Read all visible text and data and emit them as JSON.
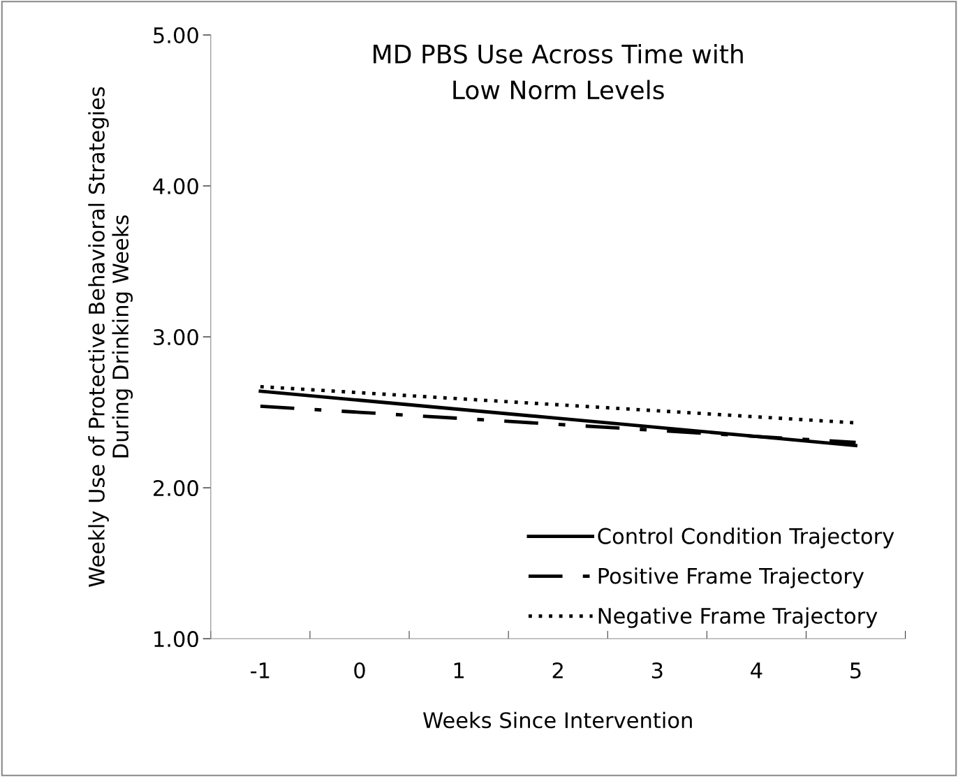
{
  "chart_data": {
    "type": "line",
    "title": "MD PBS Use Across Time with\nLow Norm Levels",
    "xlabel": "Weeks Since Intervention",
    "ylabel": "Weekly Use of Protective Behavioral Strategies\nDuring Drinking Weeks",
    "categories": [
      "-1",
      "0",
      "1",
      "2",
      "3",
      "4",
      "5"
    ],
    "series": [
      {
        "name": "Control Condition Trajectory",
        "color": "#000000",
        "line_style": "solid",
        "values": [
          2.64,
          2.58,
          2.52,
          2.46,
          2.4,
          2.34,
          2.28
        ]
      },
      {
        "name": "Positive Frame Trajectory",
        "color": "#000000",
        "line_style": "dashdot",
        "values": [
          2.54,
          2.5,
          2.46,
          2.42,
          2.38,
          2.34,
          2.3
        ]
      },
      {
        "name": "Negative Frame Trajectory",
        "color": "#000000",
        "line_style": "dotted",
        "values": [
          2.67,
          2.63,
          2.59,
          2.55,
          2.51,
          2.47,
          2.43
        ]
      }
    ],
    "ylim": [
      1,
      5
    ],
    "yticks": [
      {
        "value": 1,
        "label": "1.00"
      },
      {
        "value": 2,
        "label": "2.00"
      },
      {
        "value": 3,
        "label": "3.00"
      },
      {
        "value": 4,
        "label": "4.00"
      },
      {
        "value": 5,
        "label": "5.00"
      }
    ],
    "grid": false,
    "legend": "bottom right",
    "marker": "none"
  }
}
